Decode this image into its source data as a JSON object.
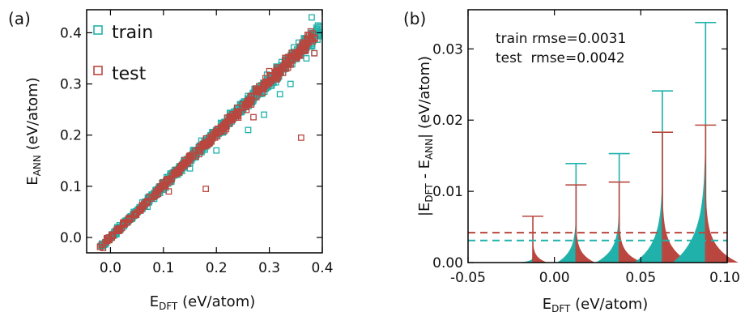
{
  "colors": {
    "train": "#20b2aa",
    "test": "#b9473f",
    "axis": "#000000"
  },
  "chart_data": [
    {
      "type": "scatter",
      "panel_label": "(a)",
      "xlabel_main": "E",
      "xlabel_sub": "DFT",
      "xlabel_rest": " (eV/atom)",
      "ylabel_main": "E",
      "ylabel_sub": "ANN",
      "ylabel_rest": " (eV/atom)",
      "xlim": [
        -0.045,
        0.4
      ],
      "ylim": [
        -0.03,
        0.445
      ],
      "xticks": [
        0.0,
        0.1,
        0.2,
        0.3,
        0.4
      ],
      "xtick_labels": [
        "0.0",
        "0.1",
        "0.2",
        "0.3",
        "0.4"
      ],
      "yticks": [
        0.0,
        0.1,
        0.2,
        0.3,
        0.4
      ],
      "ytick_labels": [
        "0.0",
        "0.1",
        "0.2",
        "0.3",
        "0.4"
      ],
      "legend": [
        "train",
        "test"
      ],
      "legend_position": "top-left",
      "series": [
        {
          "name": "train",
          "color": "#20b2aa",
          "trend_x_range": [
            -0.02,
            0.395
          ],
          "outliers": [
            [
              0.26,
              0.21
            ],
            [
              0.15,
              0.135
            ],
            [
              0.32,
              0.28
            ],
            [
              0.34,
              0.3
            ],
            [
              0.37,
              0.35
            ],
            [
              0.385,
              0.36
            ],
            [
              0.38,
              0.43
            ],
            [
              0.07,
              0.06
            ],
            [
              0.2,
              0.17
            ],
            [
              0.29,
              0.24
            ]
          ]
        },
        {
          "name": "test",
          "color": "#b9473f",
          "trend_x_range": [
            -0.02,
            0.39
          ],
          "outliers": [
            [
              0.36,
              0.195
            ],
            [
              0.18,
              0.095
            ],
            [
              0.385,
              0.36
            ],
            [
              0.33,
              0.345
            ],
            [
              0.27,
              0.235
            ],
            [
              0.3,
              0.325
            ],
            [
              0.11,
              0.09
            ]
          ]
        }
      ]
    },
    {
      "type": "violin",
      "panel_label": "(b)",
      "xlabel_main": "E",
      "xlabel_sub": "DFT",
      "xlabel_rest": " (eV/atom)",
      "ylabel_text": "|E_DFT - E_ANN| (eV/atom)",
      "xlim": [
        -0.05,
        0.1
      ],
      "ylim": [
        0.0,
        0.0355
      ],
      "xticks": [
        -0.05,
        0.0,
        0.05,
        0.1
      ],
      "xtick_labels": [
        "-0.05",
        "0.00",
        "0.05",
        "0.10"
      ],
      "yticks": [
        0.0,
        0.01,
        0.02,
        0.03
      ],
      "ytick_labels": [
        "0.00",
        "0.01",
        "0.02",
        "0.03"
      ],
      "annotations": [
        "train rmse=0.0031",
        "test  rmse=0.0042"
      ],
      "rmse": {
        "train": 0.0031,
        "test": 0.0042
      },
      "violins": [
        {
          "center": -0.0125,
          "train_max": null,
          "test_max": 0.0065
        },
        {
          "center": 0.0125,
          "train_max": 0.0139,
          "test_max": 0.0109
        },
        {
          "center": 0.0375,
          "train_max": 0.0153,
          "test_max": 0.0113
        },
        {
          "center": 0.0625,
          "train_max": 0.0241,
          "test_max": 0.0183
        },
        {
          "center": 0.0875,
          "train_max": 0.0337,
          "test_max": 0.0193
        }
      ]
    }
  ]
}
